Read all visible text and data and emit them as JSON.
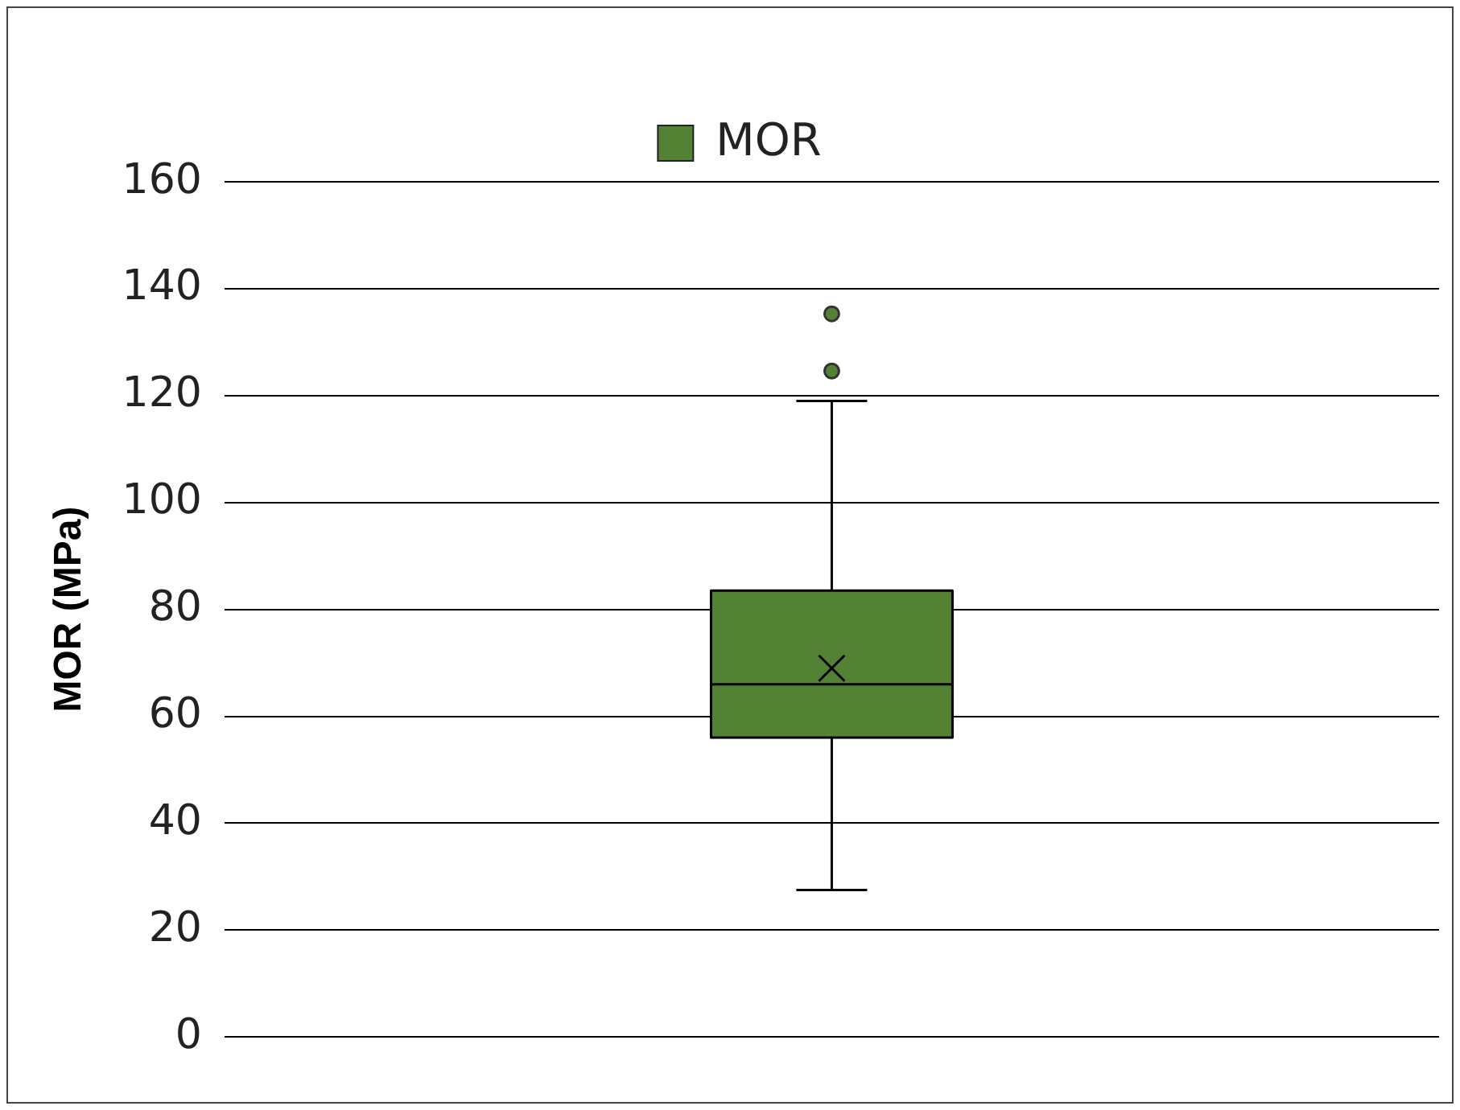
{
  "chart_data": {
    "type": "box",
    "ylabel": "MOR (MPa)",
    "categories": [
      null
    ],
    "series": [
      {
        "name": "MOR",
        "color": "#548235",
        "boxes": [
          {
            "low": 27.5,
            "q1": 56,
            "median": 66,
            "q3": 83.5,
            "high": 119,
            "mean": 69,
            "outliers": [
              124.6,
              135.3
            ]
          }
        ]
      }
    ],
    "ylim": [
      0,
      160
    ],
    "yticks": [
      0,
      20,
      40,
      60,
      80,
      100,
      120,
      140,
      160
    ],
    "grid": "y",
    "legend": "top"
  }
}
